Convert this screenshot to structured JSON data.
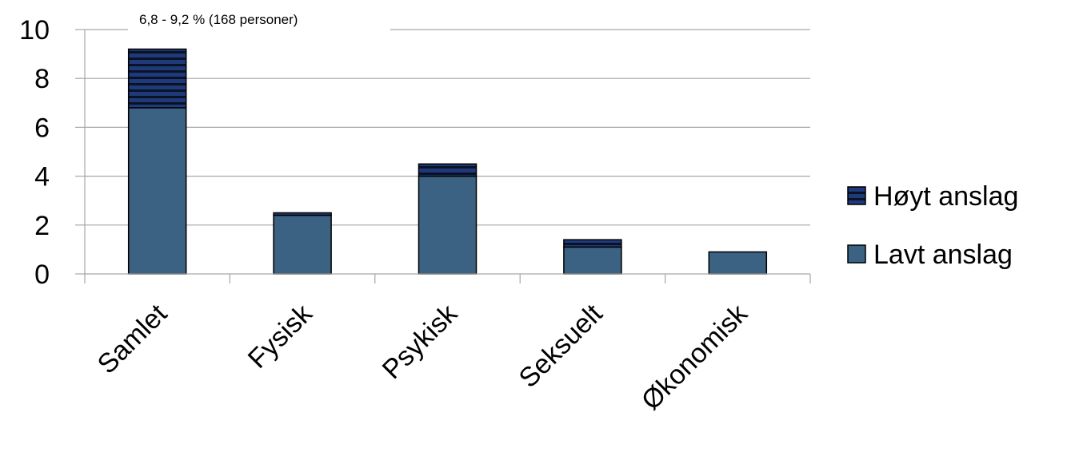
{
  "chart_data": {
    "type": "bar",
    "stacked": true,
    "categories": [
      "Samlet",
      "Fysisk",
      "Psykisk",
      "Seksuelt",
      "Økonomisk"
    ],
    "series": [
      {
        "name": "Lavt anslag",
        "values": [
          6.8,
          2.4,
          4.0,
          1.1,
          0.9
        ],
        "color": "#3b6283",
        "pattern": "solid"
      },
      {
        "name": "Høyt anslag",
        "values": [
          2.4,
          0.1,
          0.5,
          0.3,
          0.0
        ],
        "color": "#1f3a7a",
        "pattern": "horizontal-stripes"
      }
    ],
    "ylim": [
      0,
      10
    ],
    "yticks": [
      "0",
      "2",
      "4",
      "6",
      "8",
      "10"
    ],
    "grid": true,
    "legend": "right",
    "annotation": "6,8 - 9,2 % (168 personer)"
  }
}
